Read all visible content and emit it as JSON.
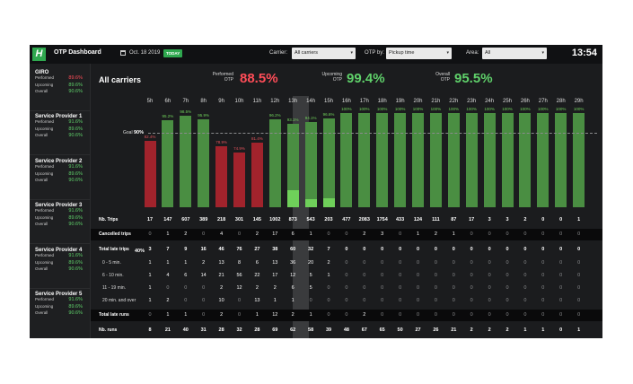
{
  "app": {
    "logo": "H",
    "title": "OTP Dashboard",
    "date": "Oct. 18 2019",
    "today_label": "TODAY",
    "clock": "13:54"
  },
  "filters": {
    "carrier_label": "Carrier:",
    "carrier_value": "All carriers",
    "otp_label": "OTP by:",
    "otp_value": "Pickup time",
    "area_label": "Area:",
    "area_value": "All"
  },
  "providers": [
    {
      "name": "GIRO",
      "performed": "89.6%",
      "upcoming": "89.6%",
      "overall": "90.6%",
      "performed_color": "red"
    },
    {
      "name": "Service Provider 1",
      "performed": "91.6%",
      "upcoming": "89.6%",
      "overall": "90.6%",
      "performed_color": "green"
    },
    {
      "name": "Service Provider 2",
      "performed": "91.6%",
      "upcoming": "89.6%",
      "overall": "90.6%",
      "performed_color": "green"
    },
    {
      "name": "Service Provider 3",
      "performed": "91.6%",
      "upcoming": "89.6%",
      "overall": "90.6%",
      "performed_color": "green"
    },
    {
      "name": "Service Provider 4",
      "performed": "91.6%",
      "upcoming": "89.6%",
      "overall": "90.6%",
      "performed_color": "green"
    },
    {
      "name": "Service Provider 5",
      "performed": "91.6%",
      "upcoming": "89.6%",
      "overall": "90.6%",
      "performed_color": "green"
    }
  ],
  "provider_row_labels": {
    "performed": "Performed",
    "upcoming": "Upcoming",
    "overall": "Overall"
  },
  "main": {
    "title": "All carriers",
    "kpis": [
      {
        "label_1": "Performed",
        "label_2": "OTP",
        "value": "88.5%",
        "color": "red"
      },
      {
        "label_1": "Upcoming",
        "label_2": "OTP",
        "value": "99.4%",
        "color": "green"
      },
      {
        "label_1": "Overall",
        "label_2": "OTP",
        "value": "95.5%",
        "color": "green"
      }
    ],
    "goal_label": "Goal",
    "goal_value": "90%",
    "axis_min_label": "40%",
    "highlight_hour": "13h"
  },
  "colors": {
    "red": "#a1232c",
    "green": "#4a8e42",
    "lime": "#6fd05a",
    "accent": "#2fa84f",
    "kpi_red": "#ff4d58"
  },
  "chart_data": {
    "type": "bar",
    "categories": [
      "5h",
      "6h",
      "7h",
      "8h",
      "9h",
      "10h",
      "11h",
      "12h",
      "13h",
      "14h",
      "15h",
      "16h",
      "17h",
      "18h",
      "19h",
      "20h",
      "21h",
      "22h",
      "23h",
      "24h",
      "25h",
      "26h",
      "27h",
      "28h",
      "29h"
    ],
    "series": [
      {
        "values": [
          82.4,
          95.2,
          98.5,
          95.9,
          78.9,
          74.9,
          81.4,
          96.2,
          93.1,
          94.1,
          96.6,
          100,
          100,
          100,
          100,
          100,
          100,
          100,
          100,
          100,
          100,
          100,
          100,
          100,
          100
        ]
      }
    ],
    "labels": [
      "82.4%",
      "95.2%",
      "98.5%",
      "95.9%",
      "78.9%",
      "74.9%",
      "81.4%",
      "96.2%",
      "93.1%",
      "94.1%",
      "96.6%",
      "100%",
      "100%",
      "100%",
      "100%",
      "100%",
      "100%",
      "100%",
      "100%",
      "100%",
      "100%",
      "100%",
      "100%",
      "100%",
      "100%"
    ],
    "color": [
      "red",
      "green",
      "green",
      "green",
      "red",
      "red",
      "red",
      "green",
      "green",
      "green",
      "green",
      "green",
      "green",
      "green",
      "green",
      "green",
      "green",
      "green",
      "green",
      "green",
      "green",
      "green",
      "green",
      "green",
      "green"
    ],
    "performed_fraction": [
      1,
      1,
      1,
      1,
      1,
      1,
      1,
      1,
      0.4,
      0.2,
      0.2,
      0,
      0,
      0,
      0,
      0,
      0,
      0,
      0,
      0,
      0,
      0,
      0,
      0,
      0
    ],
    "ylim": [
      40,
      100
    ],
    "goal": 90
  },
  "table": {
    "rows": [
      {
        "label": "Nb. Trips",
        "style": "plain",
        "values": [
          "17",
          "147",
          "607",
          "389",
          "218",
          "301",
          "145",
          "1002",
          "873",
          "543",
          "203",
          "477",
          "2083",
          "1754",
          "433",
          "124",
          "111",
          "87",
          "17",
          "3",
          "3",
          "2",
          "0",
          "0",
          "1"
        ]
      },
      {
        "label": "Cancelled trips",
        "style": "dark",
        "values": [
          "0",
          "1",
          "2",
          "0",
          "4",
          "0",
          "2",
          "17",
          "6",
          "1",
          "0",
          "0",
          "2",
          "3",
          "0",
          "1",
          "2",
          "1",
          "0",
          "0",
          "0",
          "0",
          "0",
          "0",
          "0"
        ]
      },
      {
        "label": "Total late trips",
        "style": "plain",
        "values": [
          "3",
          "7",
          "9",
          "16",
          "46",
          "76",
          "27",
          "38",
          "60",
          "32",
          "7",
          "0",
          "0",
          "0",
          "0",
          "0",
          "0",
          "0",
          "0",
          "0",
          "0",
          "0",
          "0",
          "0",
          "0"
        ]
      },
      {
        "label": "0 - 5 min.",
        "style": "sub",
        "values": [
          "1",
          "1",
          "1",
          "2",
          "13",
          "8",
          "6",
          "13",
          "36",
          "20",
          "2",
          "0",
          "0",
          "0",
          "0",
          "0",
          "0",
          "0",
          "0",
          "0",
          "0",
          "0",
          "0",
          "0",
          "0"
        ]
      },
      {
        "label": "6 - 10 min.",
        "style": "sub",
        "values": [
          "1",
          "4",
          "6",
          "14",
          "21",
          "56",
          "22",
          "17",
          "12",
          "5",
          "1",
          "0",
          "0",
          "0",
          "0",
          "0",
          "0",
          "0",
          "0",
          "0",
          "0",
          "0",
          "0",
          "0",
          "0"
        ]
      },
      {
        "label": "11 - 19 min.",
        "style": "sub",
        "values": [
          "1",
          "0",
          "0",
          "0",
          "2",
          "12",
          "2",
          "2",
          "6",
          "5",
          "0",
          "0",
          "0",
          "0",
          "0",
          "0",
          "0",
          "0",
          "0",
          "0",
          "0",
          "0",
          "0",
          "0",
          "0"
        ]
      },
      {
        "label": "20 min. and over",
        "style": "sub",
        "values": [
          "1",
          "2",
          "0",
          "0",
          "10",
          "0",
          "13",
          "1",
          "1",
          "0",
          "0",
          "0",
          "0",
          "0",
          "0",
          "0",
          "0",
          "0",
          "0",
          "0",
          "0",
          "0",
          "0",
          "0",
          "0"
        ]
      },
      {
        "label": "Total late runs",
        "style": "dark",
        "values": [
          "0",
          "1",
          "1",
          "0",
          "2",
          "0",
          "1",
          "12",
          "2",
          "1",
          "0",
          "0",
          "2",
          "0",
          "0",
          "0",
          "0",
          "0",
          "0",
          "0",
          "0",
          "0",
          "0",
          "0",
          "0"
        ]
      },
      {
        "label": "Nb. runs",
        "style": "plain",
        "values": [
          "8",
          "21",
          "40",
          "31",
          "28",
          "32",
          "28",
          "69",
          "62",
          "58",
          "39",
          "48",
          "67",
          "65",
          "50",
          "27",
          "26",
          "21",
          "2",
          "2",
          "2",
          "1",
          "1",
          "0",
          "1"
        ]
      }
    ]
  }
}
